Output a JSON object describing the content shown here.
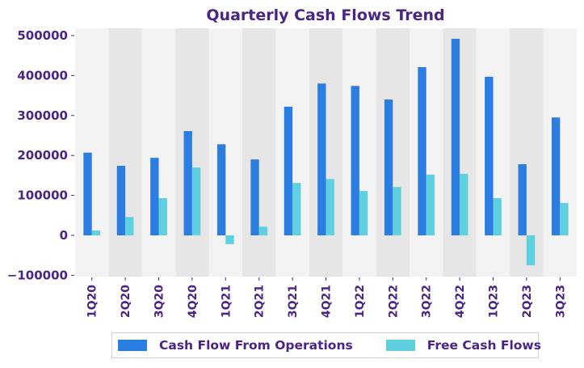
{
  "chart_data": {
    "type": "bar",
    "title": "Quarterly Cash Flows Trend",
    "xlabel": "",
    "ylabel": "",
    "categories": [
      "1Q20",
      "2Q20",
      "3Q20",
      "4Q20",
      "1Q21",
      "2Q21",
      "3Q21",
      "4Q21",
      "1Q22",
      "2Q22",
      "3Q22",
      "4Q22",
      "1Q23",
      "2Q23",
      "3Q23"
    ],
    "series": [
      {
        "name": "Cash Flow From Operations",
        "color": "#2b7de1",
        "values": [
          207000,
          174000,
          194000,
          261000,
          228000,
          190000,
          322000,
          380000,
          374000,
          340000,
          421000,
          492000,
          397000,
          178000,
          295000
        ]
      },
      {
        "name": "Free Cash Flows",
        "color": "#5fd0df",
        "values": [
          12000,
          46000,
          93000,
          170000,
          -22000,
          22000,
          131000,
          141000,
          111000,
          121000,
          152000,
          154000,
          93000,
          -75000,
          81000
        ]
      }
    ],
    "ylim": [
      -100000,
      520000
    ],
    "yticks": [
      -100000,
      0,
      100000,
      200000,
      300000,
      400000,
      500000
    ],
    "ytick_labels": [
      "−100000",
      "0",
      "100000",
      "200000",
      "300000",
      "400000",
      "500000"
    ],
    "grid": false,
    "band_colors": [
      "#f3f3f3",
      "#e6e6e6"
    ],
    "legend_position": "bottom-center"
  }
}
